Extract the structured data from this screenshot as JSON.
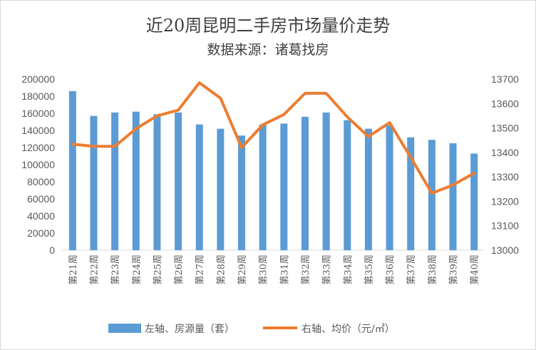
{
  "chart_data": {
    "type": "bar+line",
    "title": "近20周昆明二手房市场量价走势",
    "subtitle": "数据来源：诸葛找房",
    "categories": [
      "第21周",
      "第22周",
      "第23周",
      "第24周",
      "第25周",
      "第26周",
      "第27周",
      "第28周",
      "第29周",
      "第30周",
      "第31周",
      "第32周",
      "第33周",
      "第34周",
      "第35周",
      "第36周",
      "第37周",
      "第38周",
      "第39周",
      "第40周"
    ],
    "series": [
      {
        "name": "左轴、房源量（套）",
        "type": "bar",
        "axis": "left",
        "color": "#5b9bd5",
        "values": [
          186000,
          157000,
          161000,
          162000,
          159000,
          161000,
          147000,
          142000,
          134000,
          147000,
          148000,
          156000,
          161000,
          152000,
          142000,
          146000,
          132000,
          129000,
          125000,
          113000
        ]
      },
      {
        "name": "右轴、均价（元/㎡）",
        "type": "line",
        "axis": "right",
        "color": "#ed7d31",
        "values": [
          13434,
          13425,
          13425,
          13497,
          13550,
          13573,
          13685,
          13622,
          13420,
          13513,
          13555,
          13642,
          13642,
          13545,
          13465,
          13522,
          13380,
          13233,
          13267,
          13315
        ]
      }
    ],
    "left_axis": {
      "min": 0,
      "max": 200000,
      "step": 20000
    },
    "right_axis": {
      "min": 13000,
      "max": 13700,
      "step": 100
    },
    "grid": false,
    "legend_position": "bottom"
  }
}
